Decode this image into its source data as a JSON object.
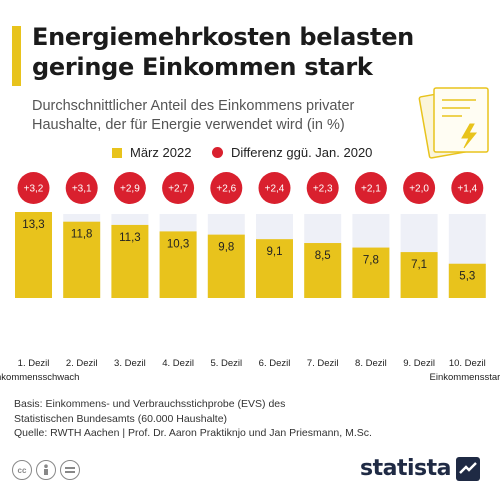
{
  "header": {
    "title_line1": "Energiemehrkosten belasten",
    "title_line2": "geringe Einkommen stark",
    "subtitle_line1": "Durchschnittlicher Anteil des Einkommens privater",
    "subtitle_line2": "Haushalte, der für Energie verwendet wird (in %)"
  },
  "legend": {
    "bars_label": "März 2022",
    "dots_label": "Differenz ggü. Jan. 2020"
  },
  "chart_data": {
    "type": "bar",
    "categories": [
      "1. Dezil",
      "2. Dezil",
      "3. Dezil",
      "4. Dezil",
      "5. Dezil",
      "6. Dezil",
      "7. Dezil",
      "8. Dezil",
      "9. Dezil",
      "10. Dezil"
    ],
    "category_sublabels": [
      "Einkommensschwach",
      "",
      "",
      "",
      "",
      "",
      "",
      "",
      "",
      "Einkommensstark"
    ],
    "series": [
      {
        "name": "März 2022",
        "values": [
          13.3,
          11.8,
          11.3,
          10.3,
          9.8,
          9.1,
          8.5,
          7.8,
          7.1,
          5.3
        ],
        "labels": [
          "13,3",
          "11,8",
          "11,3",
          "10,3",
          "9,8",
          "9,1",
          "8,5",
          "7,8",
          "7,1",
          "5,3"
        ],
        "color": "#e8c31c"
      },
      {
        "name": "Differenz ggü. Jan. 2020",
        "values": [
          3.2,
          3.1,
          2.9,
          2.7,
          2.6,
          2.4,
          2.3,
          2.1,
          2.0,
          1.4
        ],
        "labels": [
          "+3,2",
          "+3,1",
          "+2,9",
          "+2,7",
          "+2,6",
          "+2,4",
          "+2,3",
          "+2,1",
          "+2,0",
          "+1,4"
        ],
        "color": "#d9202e"
      }
    ],
    "ylim": [
      0,
      13.3
    ],
    "background_color": "#eef0f7",
    "grid": false
  },
  "footer": {
    "source_line1": "Basis: Einkommens- und Verbrauchsstichprobe (EVS) des",
    "source_line2": "Statistischen Bundesamts (60.000 Haushalte)",
    "source_line3": "Quelle: RWTH Aachen | Prof. Dr. Aaron Praktiknjo und Jan Priesmann, M.Sc.",
    "license_icons": [
      "cc-icon",
      "attribution-icon",
      "no-derivatives-icon"
    ],
    "brand": "statista"
  },
  "colors": {
    "accent": "#e8c31c",
    "diff": "#d9202e",
    "brand": "#1f2a44"
  }
}
